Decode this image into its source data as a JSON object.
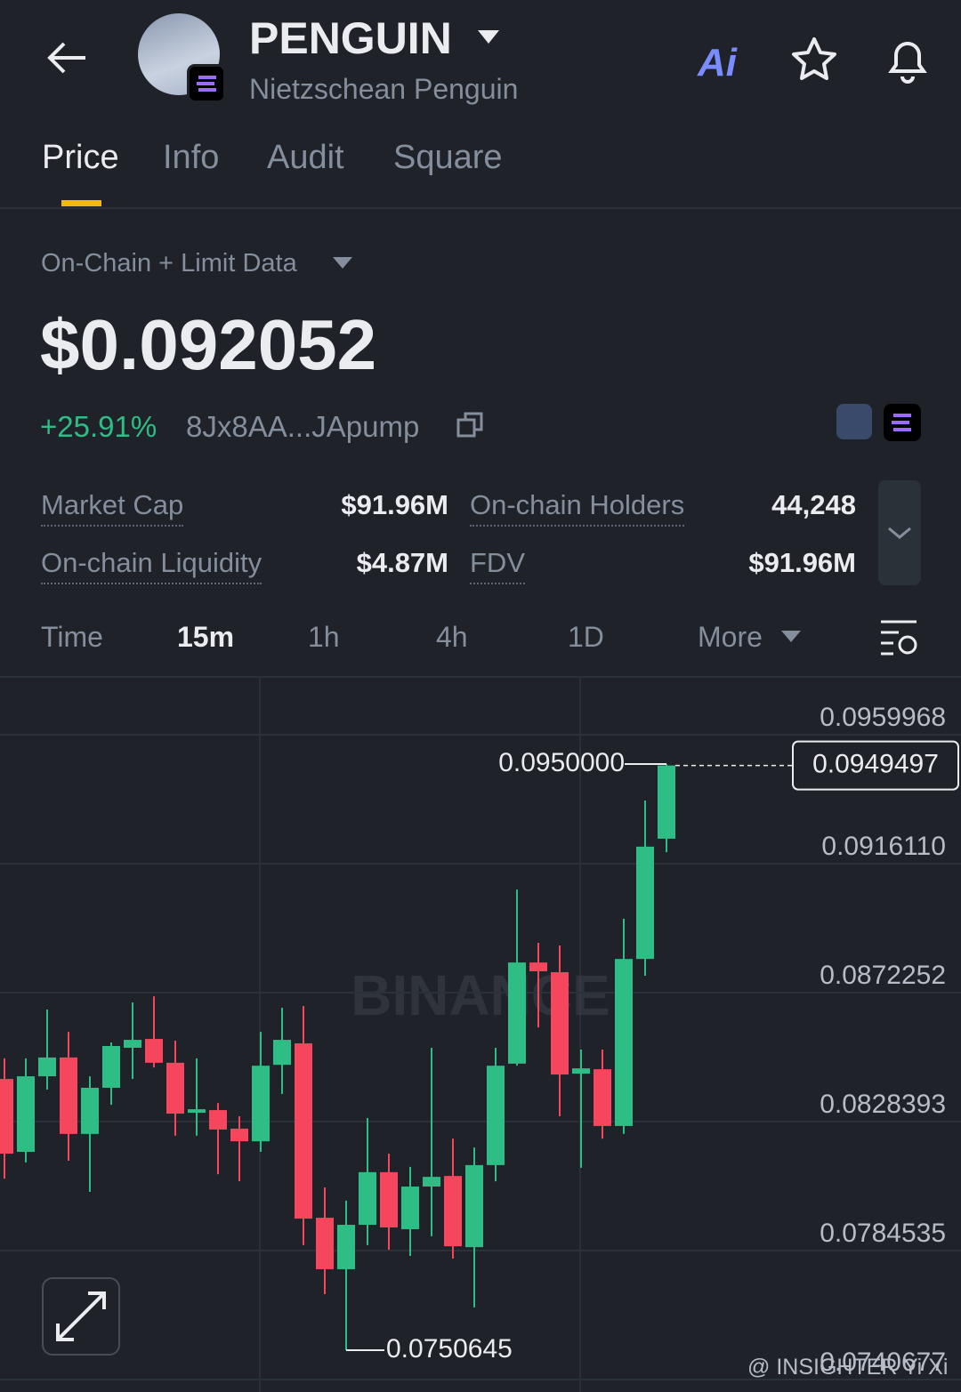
{
  "header": {
    "title": "PENGUIN",
    "subtitle": "Nietzschean Penguin",
    "ai_label": "Ai"
  },
  "tabs": [
    "Price",
    "Info",
    "Audit",
    "Square"
  ],
  "data_source": "On-Chain + Limit Data",
  "price": "$0.092052",
  "change": "+25.91%",
  "address": "8Jx8AA...JApump",
  "stats": [
    {
      "label": "Market Cap",
      "value": "$91.96M"
    },
    {
      "label": "On-chain Holders",
      "value": "44,248"
    },
    {
      "label": "On-chain Liquidity",
      "value": "$4.87M"
    },
    {
      "label": "FDV",
      "value": "$91.96M"
    }
  ],
  "intervals": [
    "Time",
    "15m",
    "1h",
    "4h",
    "1D",
    "More"
  ],
  "watermark": "BINANCE",
  "credit": "@ INSIGHTER Yi Xi",
  "chart_data": {
    "type": "candlestick",
    "open": [
      0.08429,
      0.08181,
      0.08438,
      0.08502,
      0.08242,
      0.08399,
      0.08535,
      0.08565,
      0.08484,
      0.08314,
      0.08323,
      0.0826,
      0.08217,
      0.08477,
      0.0855,
      0.07957,
      0.07782,
      0.07933,
      0.08112,
      0.07918,
      0.08063,
      0.08099,
      0.07857,
      0.08136,
      0.08481,
      0.08825,
      0.08792,
      0.08447,
      0.08462,
      0.08269,
      0.08837,
      0.09246
    ],
    "high": [
      0.08499,
      0.08499,
      0.08665,
      0.08589,
      0.08438,
      0.08553,
      0.08689,
      0.0871,
      0.08559,
      0.08499,
      0.08347,
      0.08302,
      0.08589,
      0.08671,
      0.08677,
      0.0806,
      0.08015,
      0.08296,
      0.08175,
      0.0813,
      0.08535,
      0.08226,
      0.08196,
      0.08535,
      0.09073,
      0.08892,
      0.08883,
      0.08529,
      0.08529,
      0.08974,
      0.09376,
      0.095
    ],
    "low": [
      0.0809,
      0.08145,
      0.08393,
      0.08151,
      0.08045,
      0.08341,
      0.08429,
      0.08468,
      0.08236,
      0.08236,
      0.08105,
      0.08081,
      0.08181,
      0.08378,
      0.07864,
      0.07697,
      0.0750645,
      0.07864,
      0.07848,
      0.07827,
      0.07894,
      0.07818,
      0.07652,
      0.08081,
      0.08474,
      0.08604,
      0.08302,
      0.08127,
      0.08226,
      0.08242,
      0.0878,
      0.092
    ],
    "close": [
      0.08175,
      0.08438,
      0.08502,
      0.08242,
      0.08399,
      0.08541,
      0.08562,
      0.08484,
      0.08311,
      0.08326,
      0.08257,
      0.08217,
      0.08474,
      0.08562,
      0.07954,
      0.07782,
      0.07933,
      0.08112,
      0.07924,
      0.08063,
      0.08096,
      0.0786,
      0.08136,
      0.08474,
      0.08825,
      0.08795,
      0.08444,
      0.08465,
      0.08269,
      0.08837,
      0.09219,
      0.0949497
    ],
    "up_color": "#2ebd85",
    "down_color": "#f6465d",
    "high_label": "0.0950000",
    "low_label": "0.0750645",
    "last_label": "0.0949497",
    "ylim": [
      0.0736443,
      0.0979326
    ],
    "yticks": [
      {
        "value": 0.0959968,
        "label": "0.0959968"
      },
      {
        "value": 0.091611,
        "label": "0.0916110"
      },
      {
        "value": 0.0872252,
        "label": "0.0872252"
      },
      {
        "value": 0.0828393,
        "label": "0.0828393"
      },
      {
        "value": 0.0784535,
        "label": "0.0784535"
      },
      {
        "value": 0.0740677,
        "label": "0.0740677"
      }
    ],
    "grid": true
  }
}
